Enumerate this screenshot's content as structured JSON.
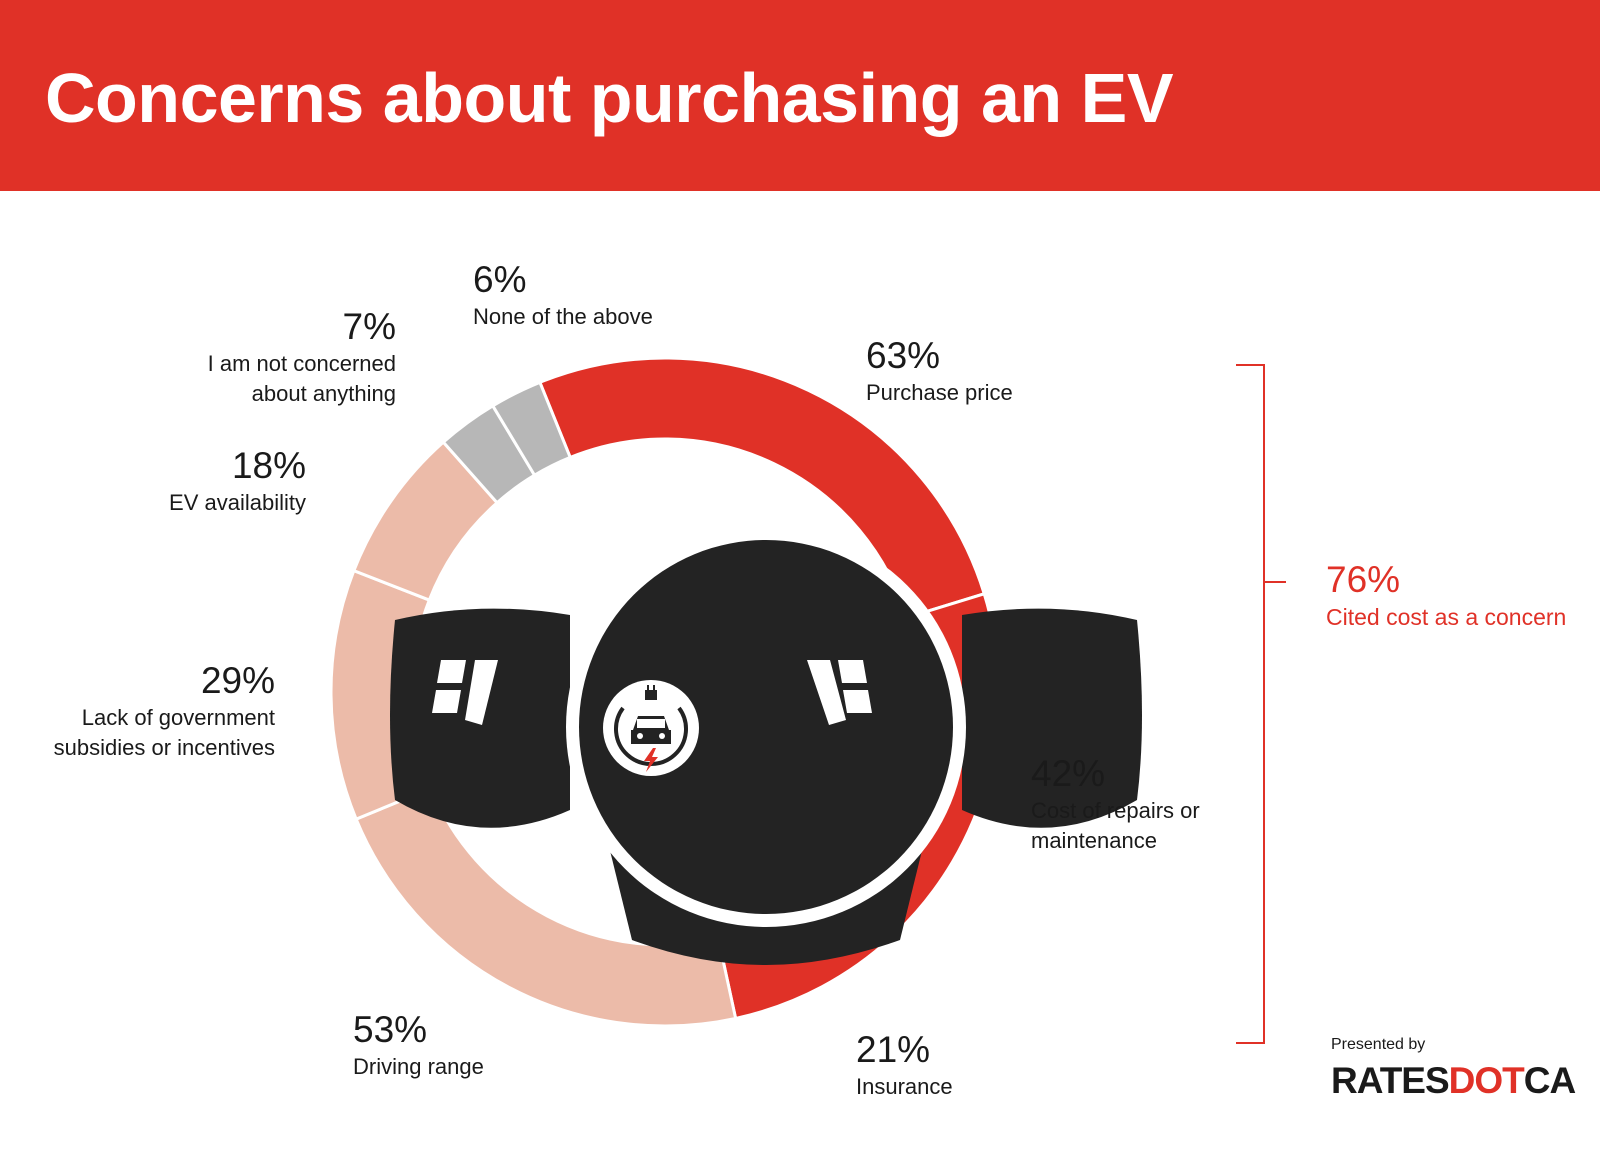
{
  "header": {
    "title": "Concerns about purchasing an EV"
  },
  "colors": {
    "cost": "#e03127",
    "other": "#ecbba9",
    "neutral": "#b7b7b7",
    "wheel": "#232323"
  },
  "chart_data": {
    "type": "pie",
    "title": "Concerns about purchasing an EV",
    "slices": [
      {
        "label": "Purchase price",
        "pct_label": "63%",
        "value": 63,
        "group": "cost"
      },
      {
        "label": "Cost of repairs or maintenance",
        "pct_label": "42%",
        "value": 42,
        "group": "cost"
      },
      {
        "label": "Insurance",
        "pct_label": "21%",
        "value": 21,
        "group": "cost"
      },
      {
        "label": "Driving range",
        "pct_label": "53%",
        "value": 53,
        "group": "other"
      },
      {
        "label": "Lack of government subsidies or incentives",
        "pct_label": "29%",
        "value": 29,
        "group": "other"
      },
      {
        "label": "EV availability",
        "pct_label": "18%",
        "value": 18,
        "group": "other"
      },
      {
        "label": "I am not concerned about anything",
        "pct_label": "7%",
        "value": 7,
        "group": "neutral"
      },
      {
        "label": "None of the above",
        "pct_label": "6%",
        "value": 6,
        "group": "neutral"
      }
    ],
    "summary": {
      "value": "76%",
      "label": "Cited cost as a concern"
    }
  },
  "labels": {
    "purchase_price": {
      "pct": "63%",
      "text": "Purchase price"
    },
    "repairs": {
      "pct": "42%",
      "text": "Cost of repairs or\nmaintenance"
    },
    "insurance": {
      "pct": "21%",
      "text": "Insurance"
    },
    "driving_range": {
      "pct": "53%",
      "text": "Driving range"
    },
    "subsidies": {
      "pct": "29%",
      "text": "Lack of government\nsubsidies or incentives"
    },
    "availability": {
      "pct": "18%",
      "text": "EV availability"
    },
    "not_concerned": {
      "pct": "7%",
      "text": "I am not concerned\nabout anything"
    },
    "none": {
      "pct": "6%",
      "text": "None of the above"
    }
  },
  "cost_summary": {
    "pct": "76%",
    "text": "Cited cost as a concern"
  },
  "footer": {
    "presented_by": "Presented by",
    "logo_part1": "RATES",
    "logo_part2": "DOT",
    "logo_part3": "CA"
  }
}
